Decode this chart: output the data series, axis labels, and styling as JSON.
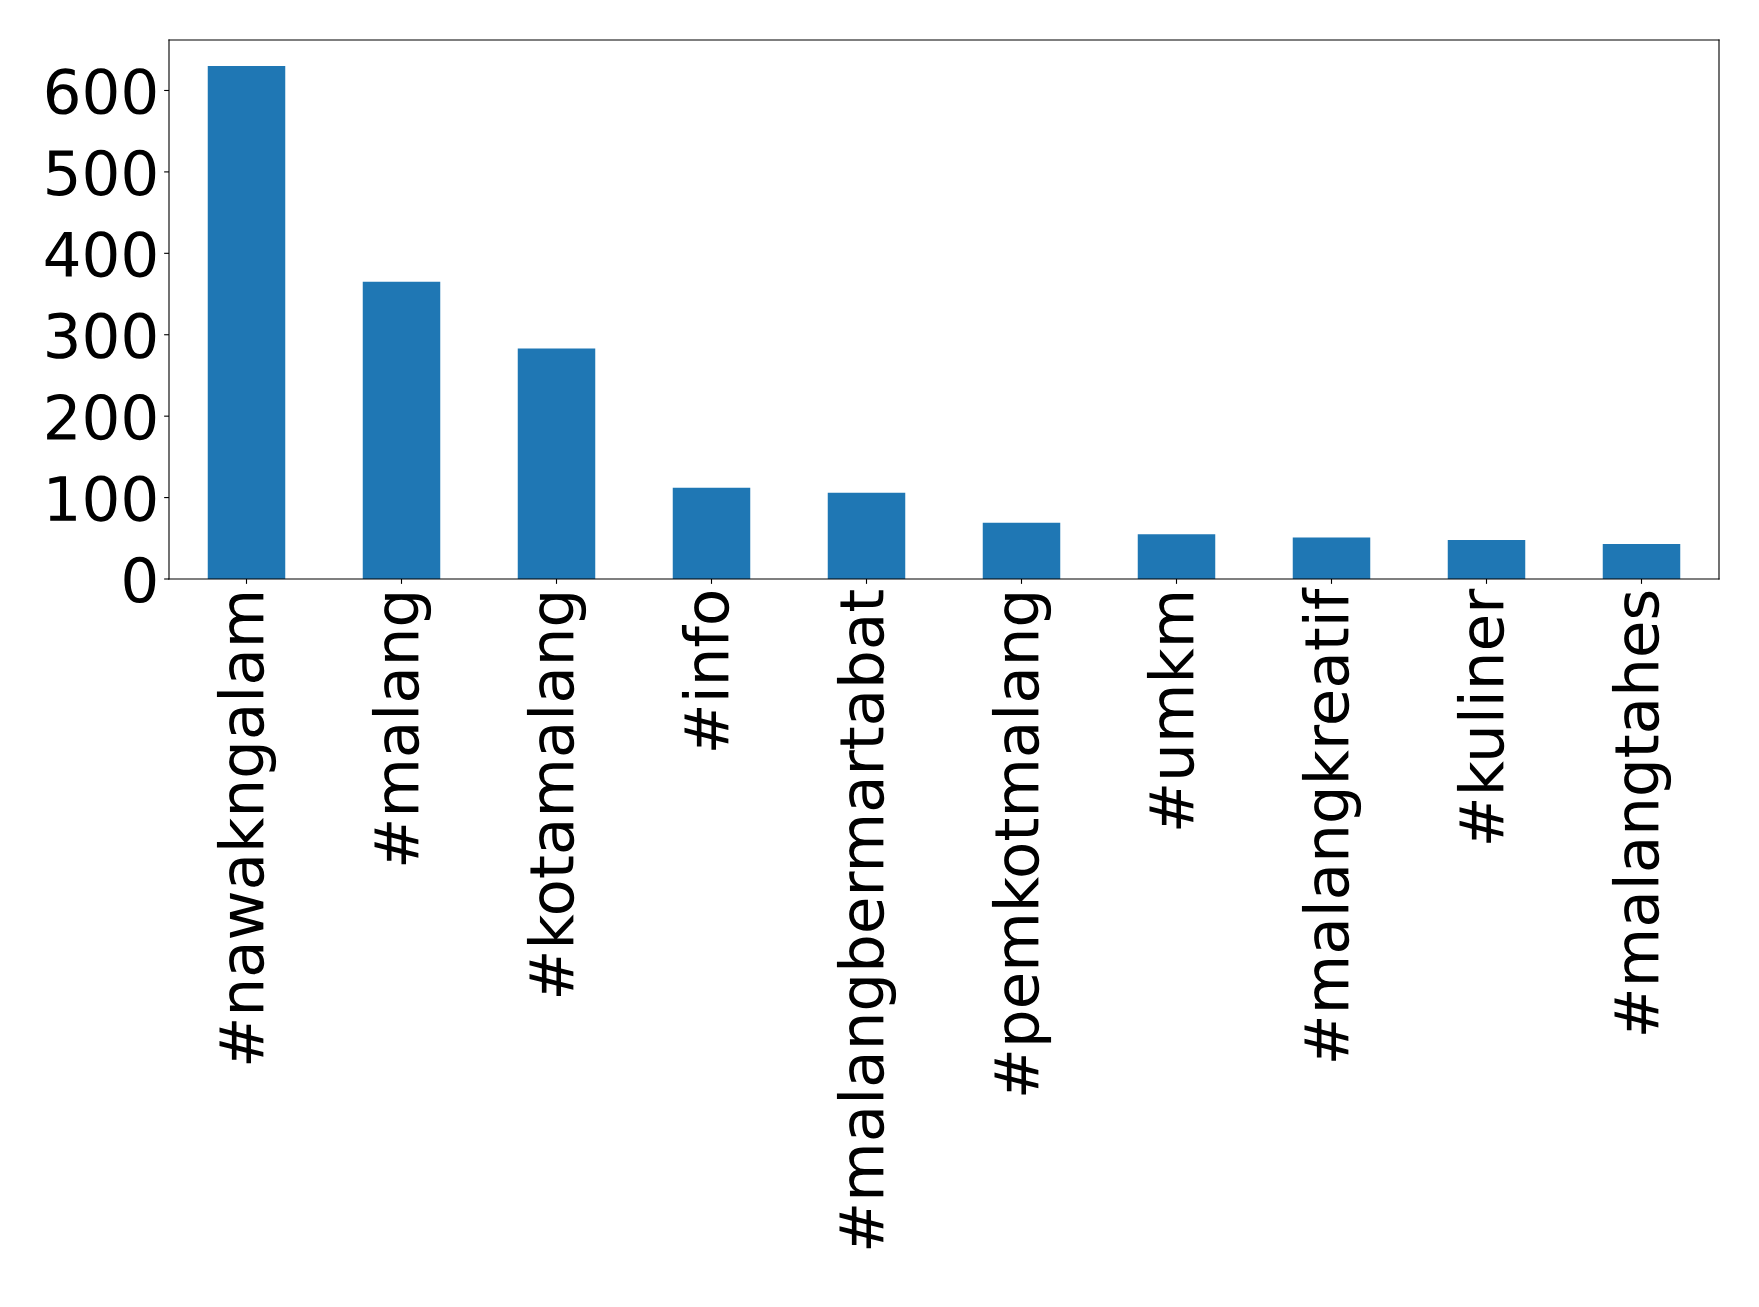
{
  "chart_data": {
    "type": "bar",
    "categories": [
      "#nawakngalam",
      "#malang",
      "#kotamalang",
      "#info",
      "#malangbermartabat",
      "#pemkotmalang",
      "#umkm",
      "#malangkreatif",
      "#kuliner",
      "#malangtahes"
    ],
    "values": [
      630,
      365,
      283,
      112,
      106,
      69,
      55,
      51,
      48,
      43
    ],
    "color": "#1f77b4",
    "ylim": [
      0,
      662
    ],
    "yticks": [
      0,
      100,
      200,
      300,
      400,
      500,
      600
    ],
    "grid": false,
    "legend": false
  }
}
